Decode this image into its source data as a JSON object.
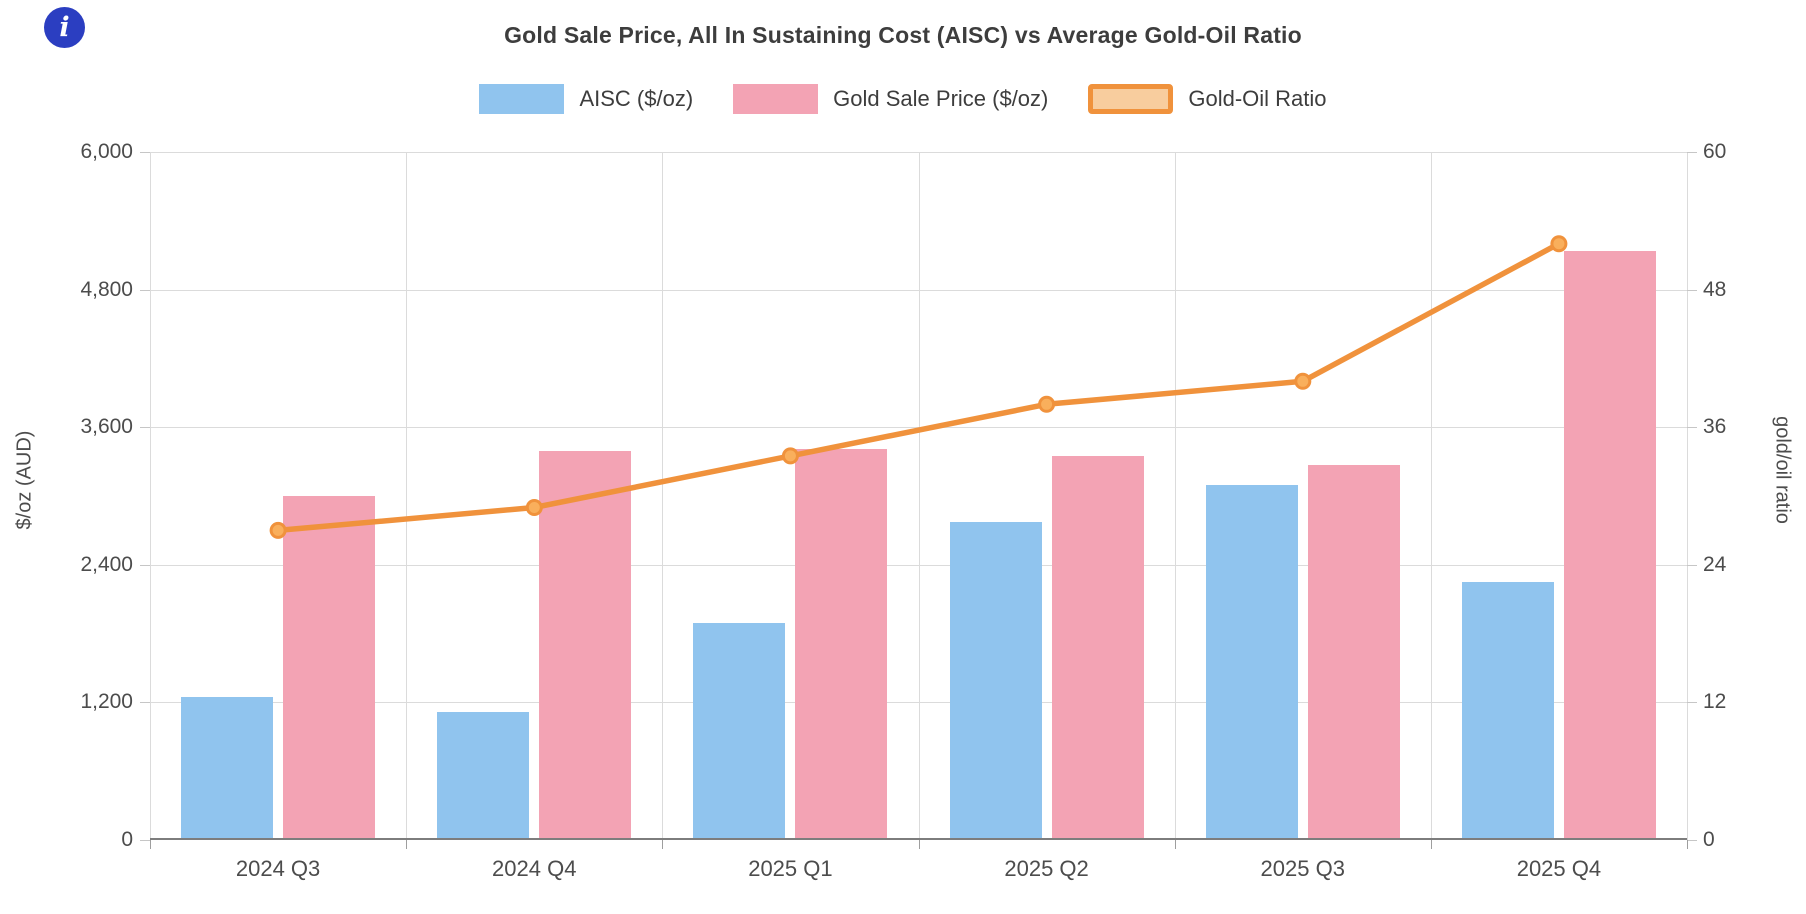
{
  "info_icon": {
    "glyph": "i"
  },
  "title": "Gold Sale Price, All In Sustaining Cost (AISC) vs Average Gold-Oil Ratio",
  "legend": {
    "aisc_label": "AISC ($/oz)",
    "price_label": "Gold Sale Price ($/oz)",
    "ratio_label": "Gold-Oil Ratio"
  },
  "left_axis": {
    "title": "$/oz (AUD)",
    "ticks": [
      "6,000",
      "4,800",
      "3,600",
      "2,400",
      "1,200",
      "0"
    ]
  },
  "right_axis": {
    "title": "gold/oil ratio",
    "ticks": [
      "60",
      "48",
      "36",
      "24",
      "12",
      "0"
    ]
  },
  "chart_data": {
    "type": "bar+line",
    "title": "Gold Sale Price, All In Sustaining Cost (AISC) vs Average Gold-Oil Ratio",
    "categories": [
      "2024 Q3",
      "2024 Q4",
      "2025 Q1",
      "2025 Q2",
      "2025 Q3",
      "2025 Q4"
    ],
    "series": [
      {
        "name": "AISC ($/oz)",
        "type": "bar",
        "axis": "left",
        "color": "#90c4ee",
        "values": [
          1250,
          1120,
          1890,
          2770,
          3100,
          2250
        ]
      },
      {
        "name": "Gold Sale Price ($/oz)",
        "type": "bar",
        "axis": "left",
        "color": "#f3a3b4",
        "values": [
          3000,
          3390,
          3410,
          3350,
          3270,
          5140
        ]
      },
      {
        "name": "Gold-Oil Ratio",
        "type": "line",
        "axis": "right",
        "color": "#f0923c",
        "values": [
          27,
          29,
          33.5,
          38,
          40,
          52
        ]
      }
    ],
    "left_axis_label": "$/oz (AUD)",
    "right_axis_label": "gold/oil ratio",
    "left_axis_range": [
      0,
      6000
    ],
    "right_axis_range": [
      0,
      60
    ],
    "grid": true,
    "legend_position": "top"
  },
  "colors": {
    "aisc_bar": "#90c4ee",
    "price_bar": "#f3a3b4",
    "ratio_line": "#f0923c",
    "ratio_marker_fill": "#f9af5c",
    "ratio_legend_fill": "#f8cd9e",
    "grid": "#dbdbdb",
    "axis_line": "#7d7d7d",
    "text": "#3d3d3d",
    "tick_text": "#4c4c4c",
    "info_icon_bg": "#2b3ec1"
  }
}
